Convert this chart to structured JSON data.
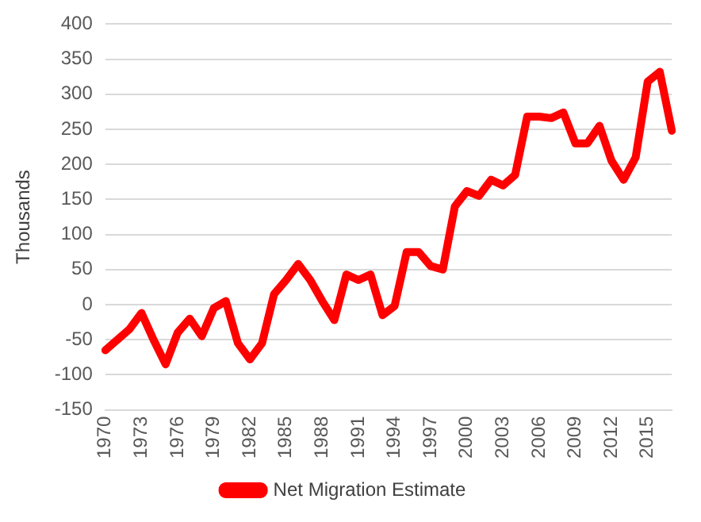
{
  "chart_data": {
    "type": "line",
    "ylabel": "Thousands",
    "categories": [
      "1970",
      null,
      null,
      "1973",
      null,
      null,
      "1976",
      null,
      null,
      "1979",
      null,
      null,
      "1982",
      null,
      null,
      "1985",
      null,
      null,
      "1988",
      null,
      null,
      "1991",
      null,
      null,
      "1994",
      null,
      null,
      "1997",
      null,
      null,
      "2000",
      null,
      null,
      "2003",
      null,
      null,
      "2006",
      null,
      null,
      "2009",
      null,
      null,
      "2012",
      null,
      null,
      "2015",
      null,
      null
    ],
    "series": [
      {
        "name": "Net Migration Estimate",
        "color": "#ff0000",
        "values": [
          -65,
          -50,
          -35,
          -12,
          -50,
          -85,
          -40,
          -20,
          -45,
          -5,
          5,
          -55,
          -78,
          -55,
          15,
          35,
          58,
          35,
          5,
          -22,
          43,
          35,
          43,
          -15,
          -2,
          75,
          75,
          55,
          50,
          140,
          162,
          155,
          178,
          170,
          185,
          268,
          268,
          266,
          274,
          230,
          230,
          255,
          205,
          178,
          210,
          318,
          332,
          248
        ]
      }
    ],
    "ylim": [
      -150,
      400
    ],
    "yticks": [
      -150,
      -100,
      -50,
      0,
      50,
      100,
      150,
      200,
      250,
      300,
      350,
      400
    ],
    "grid": "y",
    "legend": "bottom",
    "marker": "none",
    "line_style": "solid"
  }
}
